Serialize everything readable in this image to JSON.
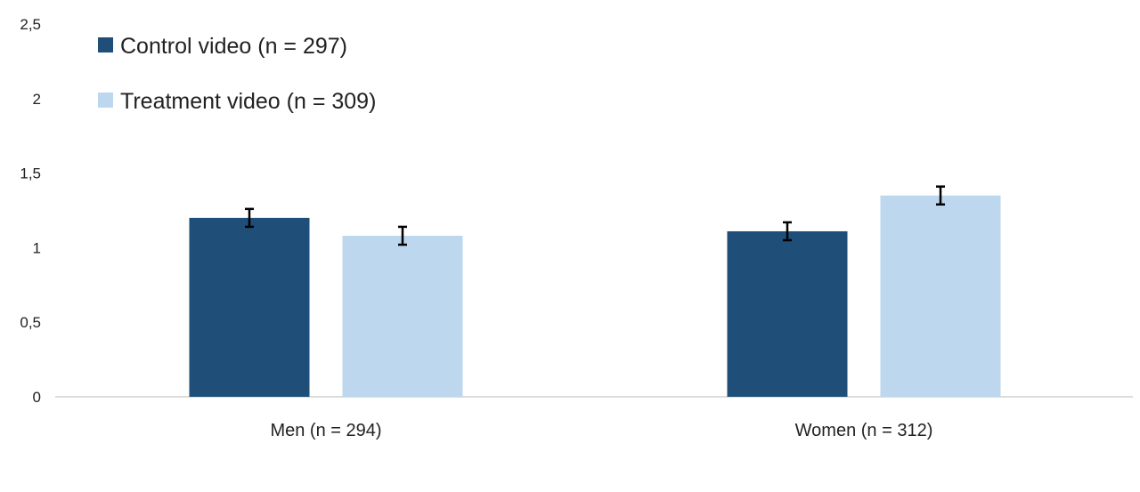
{
  "chart_data": {
    "type": "bar",
    "categories": [
      "Men (n = 294)",
      "Women (n = 312)"
    ],
    "series": [
      {
        "name": "Control video (n = 297)",
        "color": "#1f4e79",
        "values": [
          1.2,
          1.11
        ],
        "errors": [
          0.06,
          0.06
        ]
      },
      {
        "name": "Treatment video (n = 309)",
        "color": "#bdd7ee",
        "values": [
          1.08,
          1.35
        ],
        "errors": [
          0.06,
          0.06
        ]
      }
    ],
    "y_ticks": [
      "0",
      "0,5",
      "1",
      "1,5",
      "2",
      "2,5"
    ],
    "ylim": [
      0,
      2.5
    ],
    "grid": false,
    "legend_position": "top-left",
    "title": "",
    "xlabel": "",
    "ylabel": ""
  }
}
